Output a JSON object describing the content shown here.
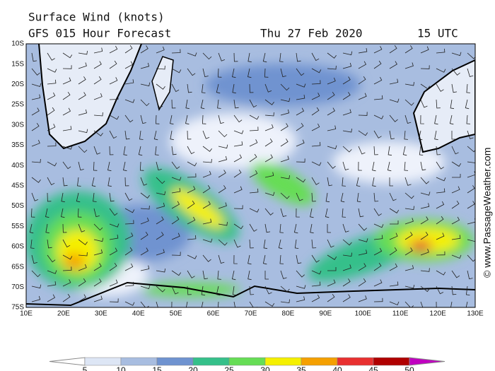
{
  "header": {
    "title": "Surface Wind (knots)",
    "model": "GFS 015 Hour Forecast",
    "date": "Thu 27 Feb 2020",
    "time": "15 UTC"
  },
  "map": {
    "lat_labels": [
      "10S",
      "15S",
      "20S",
      "25S",
      "30S",
      "35S",
      "40S",
      "45S",
      "50S",
      "55S",
      "60S",
      "65S",
      "70S",
      "75S"
    ],
    "lon_labels": [
      "10E",
      "20E",
      "30E",
      "40E",
      "50E",
      "60E",
      "70E",
      "80E",
      "90E",
      "100E",
      "110E",
      "120E",
      "130E"
    ]
  },
  "legend": {
    "labels": [
      5,
      10,
      15,
      20,
      25,
      30,
      35,
      40,
      45,
      50
    ]
  },
  "watermark": "© www.PassageWeather.com"
}
